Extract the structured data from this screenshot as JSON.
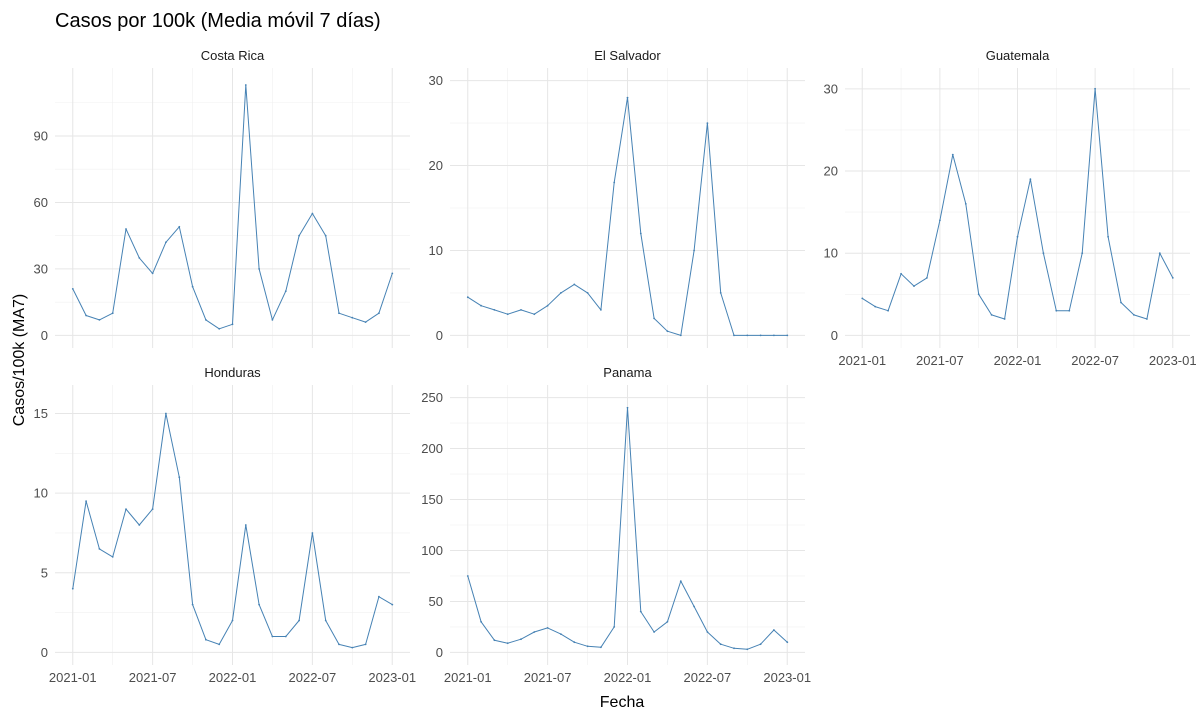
{
  "chart_data": {
    "type": "line",
    "title": "Casos por 100k (Media móvil 7 días)",
    "xlabel": "Fecha",
    "ylabel": "Casos/100k (MA7)",
    "line_color": "#4682B4",
    "grid": true,
    "x_ticks": [
      "2021-01",
      "2021-07",
      "2022-01",
      "2022-07",
      "2023-01"
    ],
    "xlim": [
      "2021-01",
      "2023-01"
    ],
    "panels": [
      {
        "name": "Costa Rica",
        "y_ticks": [
          0,
          30,
          60,
          90
        ],
        "ylim": [
          0,
          115
        ],
        "x": [
          "2021-01",
          "2021-02",
          "2021-03",
          "2021-04",
          "2021-05",
          "2021-06",
          "2021-07",
          "2021-08",
          "2021-09",
          "2021-10",
          "2021-11",
          "2021-12",
          "2022-01",
          "2022-02",
          "2022-03",
          "2022-04",
          "2022-05",
          "2022-06",
          "2022-07",
          "2022-08",
          "2022-09",
          "2022-10",
          "2022-11",
          "2022-12",
          "2023-01"
        ],
        "values": [
          21,
          9,
          7,
          10,
          48,
          35,
          28,
          42,
          49,
          22,
          7,
          3,
          5,
          113,
          30,
          7,
          20,
          45,
          55,
          45,
          10,
          8,
          6,
          10,
          28
        ]
      },
      {
        "name": "El Salvador",
        "y_ticks": [
          0,
          10,
          20,
          30
        ],
        "ylim": [
          0,
          30
        ],
        "x": [
          "2021-01",
          "2021-02",
          "2021-03",
          "2021-04",
          "2021-05",
          "2021-06",
          "2021-07",
          "2021-08",
          "2021-09",
          "2021-10",
          "2021-11",
          "2021-12",
          "2022-01",
          "2022-02",
          "2022-03",
          "2022-04",
          "2022-05",
          "2022-06",
          "2022-07",
          "2022-08",
          "2022-09",
          "2022-10",
          "2022-11",
          "2022-12",
          "2023-01"
        ],
        "values": [
          4.5,
          3.5,
          3,
          2.5,
          3,
          2.5,
          3.5,
          5,
          6,
          5,
          3,
          18,
          28,
          12,
          2,
          0.5,
          0,
          10,
          25,
          5,
          0,
          0,
          0,
          0,
          0
        ]
      },
      {
        "name": "Guatemala",
        "y_ticks": [
          0,
          10,
          20,
          30
        ],
        "ylim": [
          0,
          31
        ],
        "x": [
          "2021-01",
          "2021-02",
          "2021-03",
          "2021-04",
          "2021-05",
          "2021-06",
          "2021-07",
          "2021-08",
          "2021-09",
          "2021-10",
          "2021-11",
          "2021-12",
          "2022-01",
          "2022-02",
          "2022-03",
          "2022-04",
          "2022-05",
          "2022-06",
          "2022-07",
          "2022-08",
          "2022-09",
          "2022-10",
          "2022-11",
          "2022-12",
          "2023-01"
        ],
        "values": [
          4.5,
          3.5,
          3,
          7.5,
          6,
          7,
          14,
          22,
          16,
          5,
          2.5,
          2,
          12,
          19,
          10,
          3,
          3,
          10,
          30,
          12,
          4,
          2.5,
          2,
          10,
          7
        ]
      },
      {
        "name": "Honduras",
        "y_ticks": [
          0,
          5,
          10,
          15
        ],
        "ylim": [
          0,
          16
        ],
        "x": [
          "2021-01",
          "2021-02",
          "2021-03",
          "2021-04",
          "2021-05",
          "2021-06",
          "2021-07",
          "2021-08",
          "2021-09",
          "2021-10",
          "2021-11",
          "2021-12",
          "2022-01",
          "2022-02",
          "2022-03",
          "2022-04",
          "2022-05",
          "2022-06",
          "2022-07",
          "2022-08",
          "2022-09",
          "2022-10",
          "2022-11",
          "2022-12",
          "2023-01"
        ],
        "values": [
          4,
          9.5,
          6.5,
          6,
          9,
          8,
          9,
          15,
          11,
          3,
          0.8,
          0.5,
          2,
          8,
          3,
          1,
          1,
          2,
          7.5,
          2,
          0.5,
          0.3,
          0.5,
          3.5,
          3
        ]
      },
      {
        "name": "Panama",
        "y_ticks": [
          0,
          50,
          100,
          150,
          200,
          250
        ],
        "ylim": [
          0,
          250
        ],
        "x": [
          "2021-01",
          "2021-02",
          "2021-03",
          "2021-04",
          "2021-05",
          "2021-06",
          "2021-07",
          "2021-08",
          "2021-09",
          "2021-10",
          "2021-11",
          "2021-12",
          "2022-01",
          "2022-02",
          "2022-03",
          "2022-04",
          "2022-05",
          "2022-06",
          "2022-07",
          "2022-08",
          "2022-09",
          "2022-10",
          "2022-11",
          "2022-12",
          "2023-01"
        ],
        "values": [
          75,
          30,
          12,
          9,
          13,
          20,
          24,
          18,
          10,
          6,
          5,
          25,
          240,
          40,
          20,
          30,
          70,
          45,
          20,
          8,
          4,
          3,
          8,
          22,
          10
        ]
      }
    ]
  }
}
